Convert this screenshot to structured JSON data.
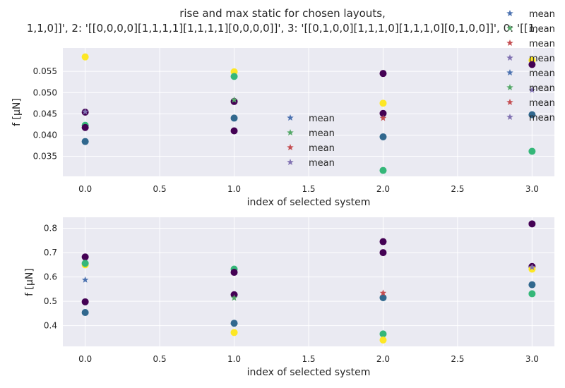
{
  "title_line1": "rise and max static for chosen layouts,",
  "title_line2": "1,1,0]]', 2: '[[0,0,0,0][1,1,1,1][1,1,1,1][0,0,0,0]]', 3: '[[0,1,0,0][1,1,1,0][1,1,1,0][0,1,0,0]]', 0: '[[1,",
  "colors": {
    "pt_dark": "#440154",
    "pt_blue": "#31688e",
    "pt_green": "#35b779",
    "pt_yellow": "#fde725",
    "mean_blue": "#4c72b0",
    "mean_green": "#55a868",
    "mean_red": "#c44e52",
    "mean_purple": "#8172b2",
    "axes_bg": "#eaeaf2",
    "grid": "#ffffff"
  },
  "chart_data": [
    {
      "type": "scatter",
      "xlabel": "index of selected system",
      "ylabel": "f [μN]",
      "xlim": [
        -0.15,
        3.15
      ],
      "ylim": [
        0.0303,
        0.0605
      ],
      "xticks": [
        0.0,
        0.5,
        1.0,
        1.5,
        2.0,
        2.5,
        3.0
      ],
      "xtick_labels": [
        "0.0",
        "0.5",
        "1.0",
        "1.5",
        "2.0",
        "2.5",
        "3.0"
      ],
      "yticks": [
        0.035,
        0.04,
        0.045,
        0.05,
        0.055
      ],
      "ytick_labels": [
        "0.035",
        "0.040",
        "0.045",
        "0.050",
        "0.055"
      ],
      "grid": true,
      "points": [
        {
          "x": 0,
          "y": 0.0584,
          "color": "pt_yellow"
        },
        {
          "x": 0,
          "y": 0.0454,
          "color": "pt_dark"
        },
        {
          "x": 0,
          "y": 0.0423,
          "color": "pt_green"
        },
        {
          "x": 0,
          "y": 0.0418,
          "color": "pt_dark"
        },
        {
          "x": 0,
          "y": 0.0385,
          "color": "pt_blue"
        },
        {
          "x": 1,
          "y": 0.0549,
          "color": "pt_yellow"
        },
        {
          "x": 1,
          "y": 0.0538,
          "color": "pt_green"
        },
        {
          "x": 1,
          "y": 0.0479,
          "color": "pt_dark"
        },
        {
          "x": 1,
          "y": 0.044,
          "color": "pt_blue"
        },
        {
          "x": 1,
          "y": 0.041,
          "color": "pt_dark"
        },
        {
          "x": 2,
          "y": 0.0545,
          "color": "pt_dark"
        },
        {
          "x": 2,
          "y": 0.0475,
          "color": "pt_yellow"
        },
        {
          "x": 2,
          "y": 0.0451,
          "color": "pt_dark"
        },
        {
          "x": 2,
          "y": 0.0396,
          "color": "pt_blue"
        },
        {
          "x": 2,
          "y": 0.0317,
          "color": "pt_green"
        },
        {
          "x": 3,
          "y": 0.0576,
          "color": "pt_yellow"
        },
        {
          "x": 3,
          "y": 0.0566,
          "color": "pt_dark"
        },
        {
          "x": 3,
          "y": 0.0448,
          "color": "pt_blue"
        },
        {
          "x": 3,
          "y": 0.0362,
          "color": "pt_green"
        }
      ],
      "means": [
        {
          "x": 0,
          "y": 0.0455,
          "color": "mean_purple"
        },
        {
          "x": 1,
          "y": 0.0483,
          "color": "mean_green"
        },
        {
          "x": 2,
          "y": 0.044,
          "color": "mean_red"
        },
        {
          "x": 3,
          "y": 0.0506,
          "color": "mean_purple"
        }
      ],
      "legend": {
        "placement": "center",
        "entries": [
          {
            "label": "mean",
            "color": "mean_blue"
          },
          {
            "label": "mean",
            "color": "mean_green"
          },
          {
            "label": "mean",
            "color": "mean_red"
          },
          {
            "label": "mean",
            "color": "mean_purple"
          }
        ]
      }
    },
    {
      "type": "scatter",
      "xlabel": "index of selected system",
      "ylabel": "f [μN]",
      "xlim": [
        -0.15,
        3.15
      ],
      "ylim": [
        0.315,
        0.845
      ],
      "xticks": [
        0.0,
        0.5,
        1.0,
        1.5,
        2.0,
        2.5,
        3.0
      ],
      "xtick_labels": [
        "0.0",
        "0.5",
        "1.0",
        "1.5",
        "2.0",
        "2.5",
        "3.0"
      ],
      "yticks": [
        0.4,
        0.5,
        0.6,
        0.7,
        0.8
      ],
      "ytick_labels": [
        "0.4",
        "0.5",
        "0.6",
        "0.7",
        "0.8"
      ],
      "grid": true,
      "points": [
        {
          "x": 0,
          "y": 0.682,
          "color": "pt_dark"
        },
        {
          "x": 0,
          "y": 0.65,
          "color": "pt_yellow"
        },
        {
          "x": 0,
          "y": 0.656,
          "color": "pt_green"
        },
        {
          "x": 0,
          "y": 0.498,
          "color": "pt_dark"
        },
        {
          "x": 0,
          "y": 0.454,
          "color": "pt_blue"
        },
        {
          "x": 1,
          "y": 0.632,
          "color": "pt_green"
        },
        {
          "x": 1,
          "y": 0.619,
          "color": "pt_dark"
        },
        {
          "x": 1,
          "y": 0.527,
          "color": "pt_dark"
        },
        {
          "x": 1,
          "y": 0.41,
          "color": "pt_blue"
        },
        {
          "x": 1,
          "y": 0.372,
          "color": "pt_yellow"
        },
        {
          "x": 2,
          "y": 0.745,
          "color": "pt_dark"
        },
        {
          "x": 2,
          "y": 0.7,
          "color": "pt_dark"
        },
        {
          "x": 2,
          "y": 0.515,
          "color": "pt_blue"
        },
        {
          "x": 2,
          "y": 0.366,
          "color": "pt_green"
        },
        {
          "x": 2,
          "y": 0.341,
          "color": "pt_yellow"
        },
        {
          "x": 3,
          "y": 0.818,
          "color": "pt_dark"
        },
        {
          "x": 3,
          "y": 0.643,
          "color": "pt_dark"
        },
        {
          "x": 3,
          "y": 0.632,
          "color": "pt_yellow"
        },
        {
          "x": 3,
          "y": 0.568,
          "color": "pt_blue"
        },
        {
          "x": 3,
          "y": 0.531,
          "color": "pt_green"
        }
      ],
      "means": [
        {
          "x": 0,
          "y": 0.588,
          "color": "mean_blue"
        },
        {
          "x": 1,
          "y": 0.514,
          "color": "mean_green"
        },
        {
          "x": 2,
          "y": 0.534,
          "color": "mean_red"
        },
        {
          "x": 3,
          "y": 0.64,
          "color": "mean_purple"
        }
      ]
    }
  ],
  "figure_legend": {
    "placement": "top-right",
    "entries": [
      {
        "label": "mean",
        "color": "mean_blue"
      },
      {
        "label": "mean",
        "color": "mean_green"
      },
      {
        "label": "mean",
        "color": "mean_red"
      },
      {
        "label": "mean",
        "color": "mean_purple"
      },
      {
        "label": "mean",
        "color": "mean_blue"
      },
      {
        "label": "mean",
        "color": "mean_green"
      },
      {
        "label": "mean",
        "color": "mean_red"
      },
      {
        "label": "mean",
        "color": "mean_purple"
      }
    ]
  }
}
